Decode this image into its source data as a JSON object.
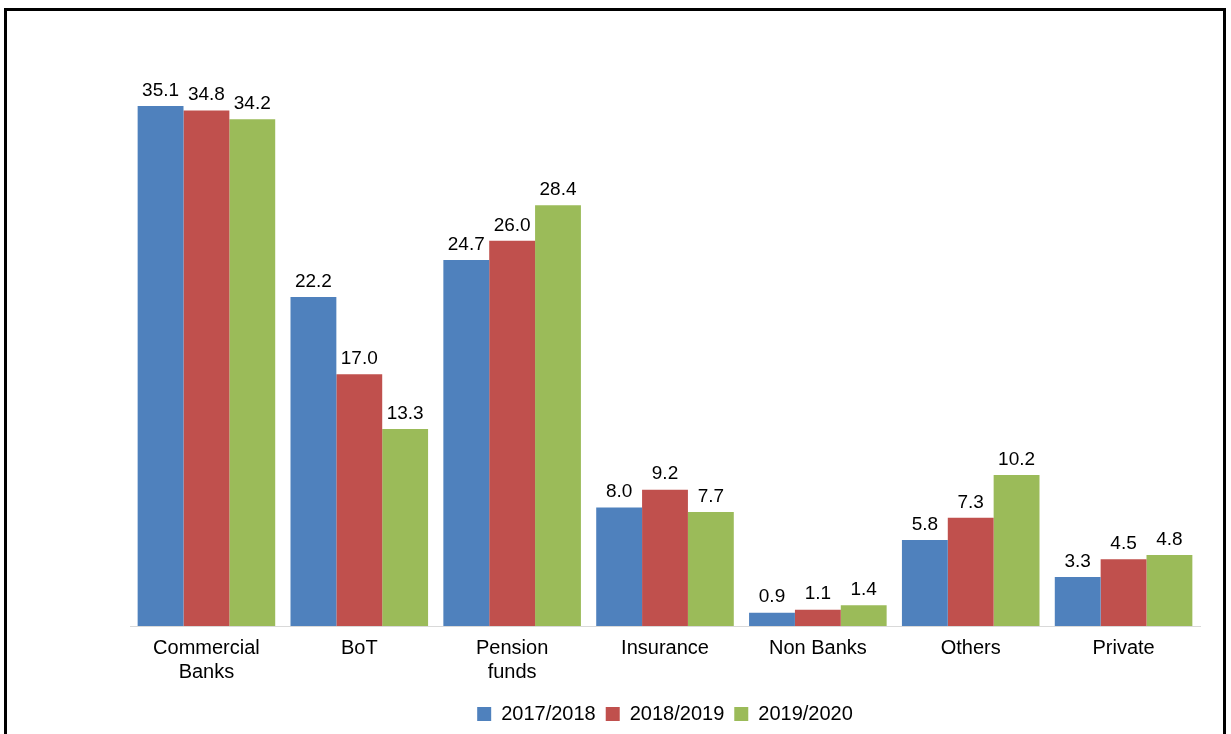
{
  "chart_data": {
    "type": "bar",
    "categories": [
      "Commercial Banks",
      "BoT",
      "Pension funds",
      "Insurance",
      "Non Banks",
      "Others",
      "Private"
    ],
    "series": [
      {
        "name": "2017/2018",
        "color": "#4f81bd",
        "values": [
          35.1,
          22.2,
          24.7,
          8.0,
          0.9,
          5.8,
          3.3
        ],
        "value_labels": [
          "35.1",
          "22.2",
          "24.7",
          "8.0",
          "0.9",
          "5.8",
          "3.3"
        ]
      },
      {
        "name": "2018/2019",
        "color": "#c0504d",
        "values": [
          34.8,
          17.0,
          26.0,
          9.2,
          1.1,
          7.3,
          4.5
        ],
        "value_labels": [
          "34.8",
          "17.0",
          "26.0",
          "9.2",
          "1.1",
          "7.3",
          "4.5"
        ]
      },
      {
        "name": "2019/2020",
        "color": "#9bbb59",
        "values": [
          34.2,
          13.3,
          28.4,
          7.7,
          1.4,
          10.2,
          4.8
        ],
        "value_labels": [
          "34.2",
          "13.3",
          "28.4",
          "7.7",
          "1.4",
          "10.2",
          "4.8"
        ]
      }
    ],
    "legend": "bottom",
    "grid": false
  }
}
